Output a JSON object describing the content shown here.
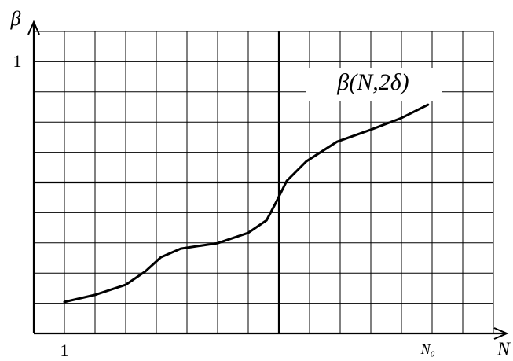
{
  "chart_data": {
    "type": "line",
    "xlabel": "N",
    "ylabel": "β",
    "annotation": "β(N,2δ)",
    "xlim": [
      0,
      15.44
    ],
    "ylim": [
      0,
      1.145
    ],
    "xticks": [
      1,
      {
        "value": 12.87,
        "label": "N₀"
      }
    ],
    "yticks": [
      1
    ],
    "series": [
      {
        "name": "β(N,2δ)",
        "color": "#000000",
        "x": [
          1,
          2,
          3,
          3.64,
          4.15,
          4.8,
          6,
          7,
          7.6,
          7.9,
          8.26,
          8.9,
          9.9,
          11,
          12,
          12.87
        ],
        "values": [
          0.116,
          0.142,
          0.179,
          0.228,
          0.28,
          0.312,
          0.332,
          0.37,
          0.416,
          0.48,
          0.561,
          0.633,
          0.705,
          0.749,
          0.792,
          0.841
        ]
      }
    ]
  }
}
